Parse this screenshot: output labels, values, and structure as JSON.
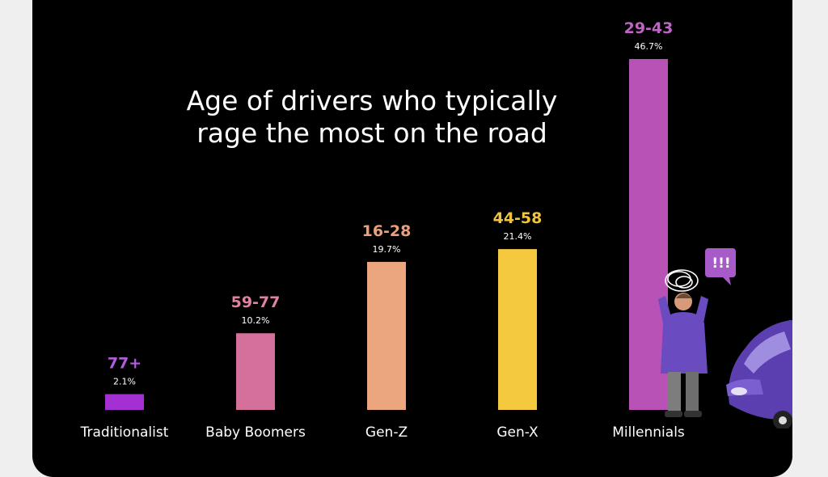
{
  "chart_data": {
    "type": "bar",
    "title": "Age of drivers who typically rage the most on the road",
    "title_lines": [
      "Age of drivers who typically",
      "rage the most on the road"
    ],
    "categories": [
      "Traditionalist",
      "Baby Boomers",
      "Gen-Z",
      "Gen-X",
      "Millennials"
    ],
    "age_ranges": [
      "77+",
      "59-77",
      "16-28",
      "44-58",
      "29-43"
    ],
    "values": [
      2.1,
      10.2,
      19.7,
      21.4,
      46.7
    ],
    "value_labels": [
      "2.1%",
      "10.2%",
      "19.7%",
      "21.4%",
      "46.7%"
    ],
    "bar_colors": [
      "#a42fd2",
      "#d4709a",
      "#eba680",
      "#f5c93d",
      "#b952b6"
    ],
    "range_label_colors": [
      "#b25ce0",
      "#e0839f",
      "#eba07c",
      "#f3c43a",
      "#c065c6"
    ],
    "ylim": [
      0,
      46.7
    ],
    "grid": false,
    "legend": "none",
    "xlabel": "",
    "ylabel": ""
  },
  "illustration": {
    "icons": [
      "angry-person-icon",
      "exclamation-speech-bubble-icon",
      "purple-car-icon"
    ],
    "bubble_text": "!!!"
  }
}
